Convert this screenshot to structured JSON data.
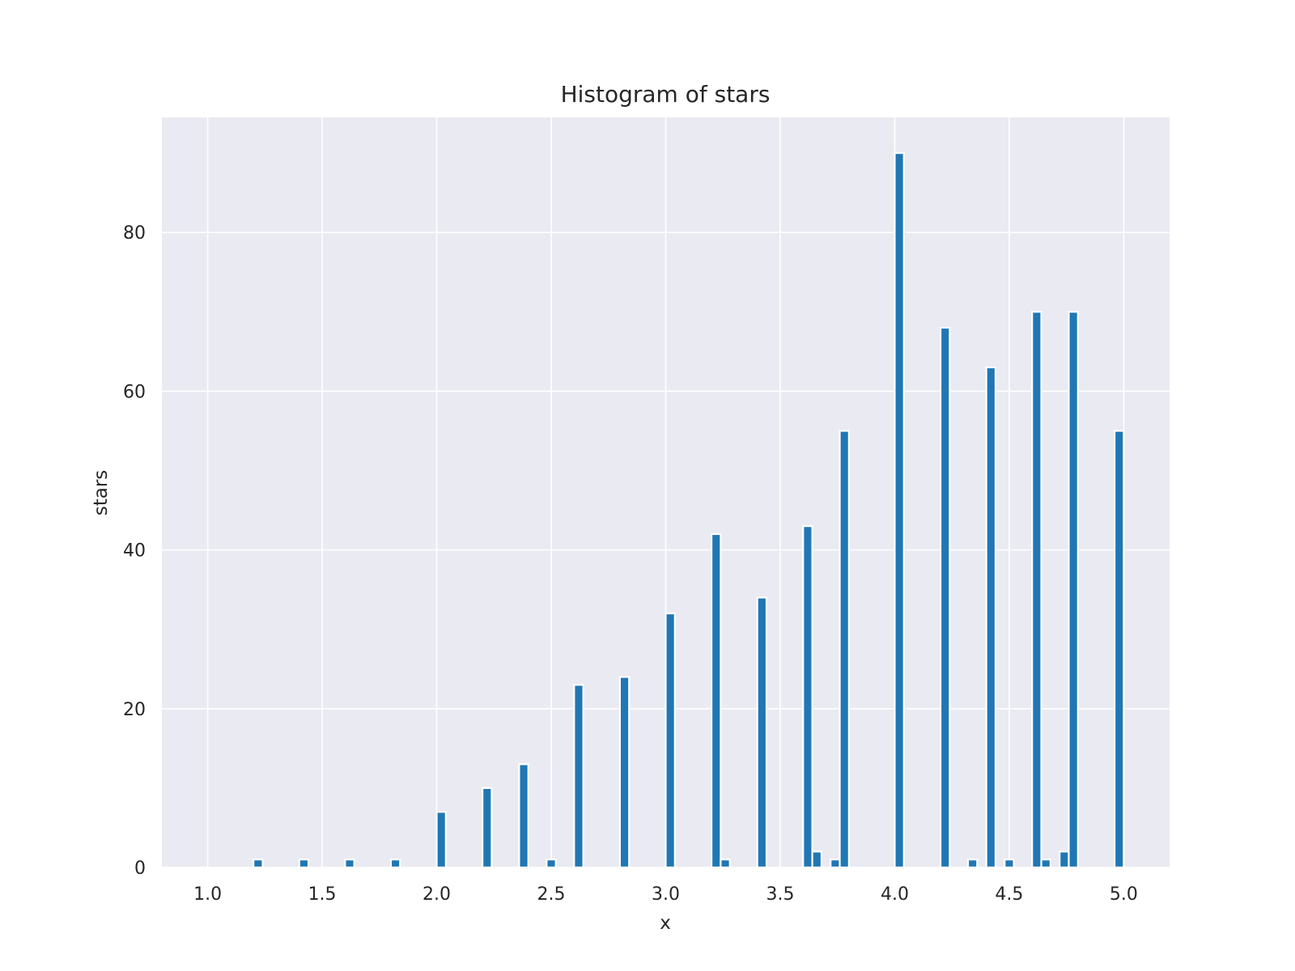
{
  "chart_data": {
    "type": "bar",
    "title": "Histogram of stars",
    "xlabel": "x",
    "ylabel": "stars",
    "xlim": [
      0.8,
      5.2
    ],
    "ylim": [
      0,
      94.5
    ],
    "grid": true,
    "colors": {
      "bar": "#2077b4",
      "plot_background": "#eaeaf2",
      "grid": "#ffffff",
      "text": "#262626"
    },
    "xticks": [
      1.0,
      1.5,
      2.0,
      2.5,
      3.0,
      3.5,
      4.0,
      4.5,
      5.0
    ],
    "xtick_labels": [
      "1.0",
      "1.5",
      "2.0",
      "2.5",
      "3.0",
      "3.5",
      "4.0",
      "4.5",
      "5.0"
    ],
    "yticks": [
      0,
      20,
      40,
      60,
      80
    ],
    "ytick_labels": [
      "0",
      "20",
      "40",
      "60",
      "80"
    ],
    "bin_width": 0.04,
    "bins": [
      {
        "x": 1.2,
        "count": 1
      },
      {
        "x": 1.4,
        "count": 1
      },
      {
        "x": 1.6,
        "count": 1
      },
      {
        "x": 1.8,
        "count": 1
      },
      {
        "x": 2.0,
        "count": 7
      },
      {
        "x": 2.2,
        "count": 10
      },
      {
        "x": 2.36,
        "count": 13
      },
      {
        "x": 2.48,
        "count": 1
      },
      {
        "x": 2.6,
        "count": 23
      },
      {
        "x": 2.8,
        "count": 24
      },
      {
        "x": 3.0,
        "count": 32
      },
      {
        "x": 3.2,
        "count": 42
      },
      {
        "x": 3.24,
        "count": 1
      },
      {
        "x": 3.4,
        "count": 34
      },
      {
        "x": 3.6,
        "count": 43
      },
      {
        "x": 3.64,
        "count": 2
      },
      {
        "x": 3.72,
        "count": 1
      },
      {
        "x": 3.76,
        "count": 55
      },
      {
        "x": 4.0,
        "count": 90
      },
      {
        "x": 4.2,
        "count": 68
      },
      {
        "x": 4.32,
        "count": 1
      },
      {
        "x": 4.4,
        "count": 63
      },
      {
        "x": 4.48,
        "count": 1
      },
      {
        "x": 4.6,
        "count": 70
      },
      {
        "x": 4.64,
        "count": 1
      },
      {
        "x": 4.72,
        "count": 2
      },
      {
        "x": 4.76,
        "count": 70
      },
      {
        "x": 4.96,
        "count": 55
      }
    ]
  }
}
